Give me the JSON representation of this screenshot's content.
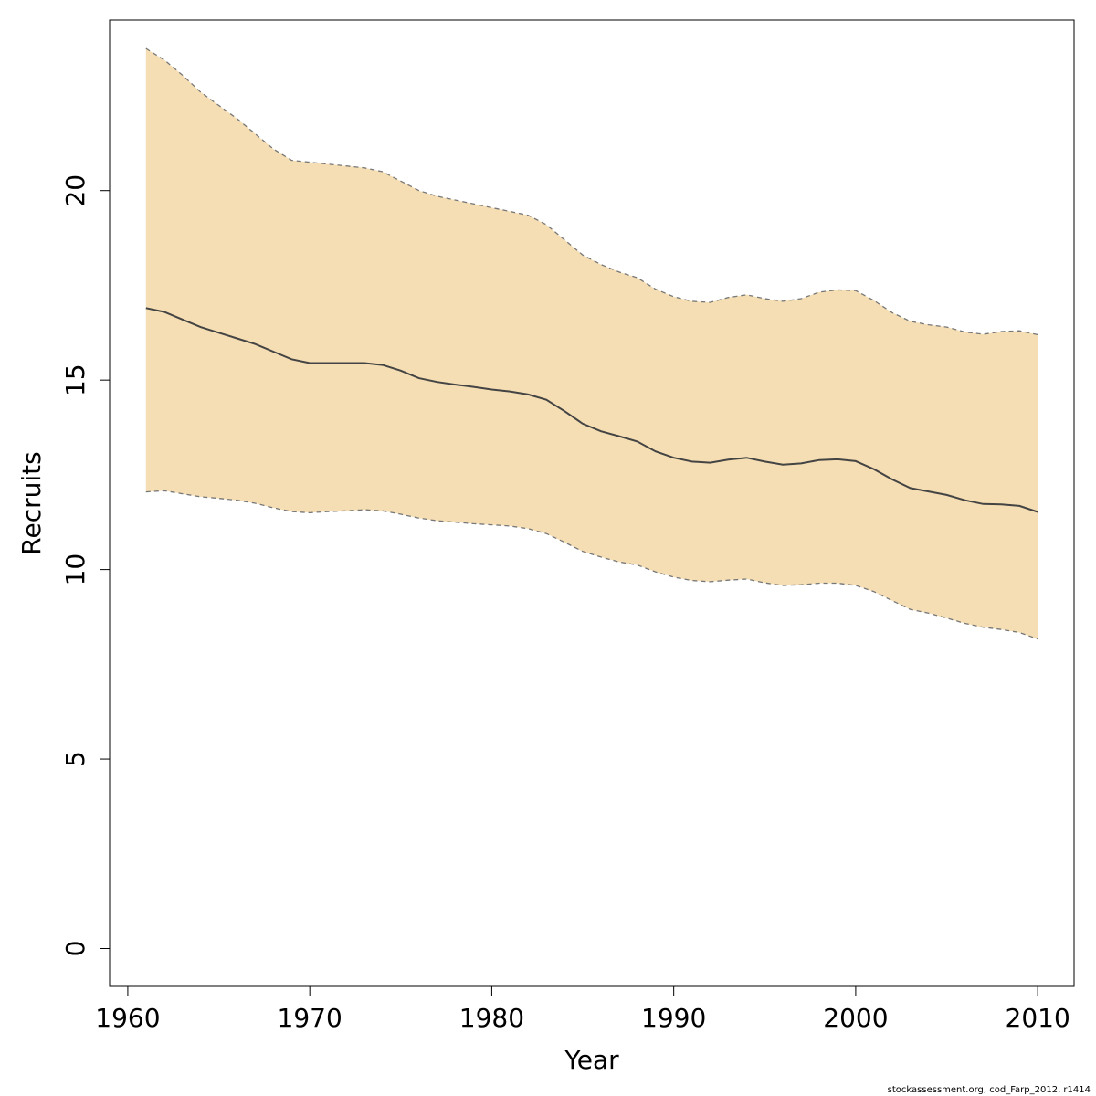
{
  "chart_data": {
    "type": "area",
    "title": "",
    "xlabel": "Year",
    "ylabel": "Recruits",
    "xlim": [
      1959,
      2012
    ],
    "ylim": [
      -1,
      24.5
    ],
    "xticks": [
      1960,
      1970,
      1980,
      1990,
      2000,
      2010
    ],
    "yticks": [
      0,
      5,
      10,
      15,
      20
    ],
    "grid": false,
    "legend": "none",
    "x": [
      1961,
      1962,
      1963,
      1964,
      1965,
      1966,
      1967,
      1968,
      1969,
      1970,
      1971,
      1972,
      1973,
      1974,
      1975,
      1976,
      1977,
      1978,
      1979,
      1980,
      1981,
      1982,
      1983,
      1984,
      1985,
      1986,
      1987,
      1988,
      1989,
      1990,
      1991,
      1992,
      1993,
      1994,
      1995,
      1996,
      1997,
      1998,
      1999,
      2000,
      2001,
      2002,
      2003,
      2004,
      2005,
      2006,
      2007,
      2008,
      2009,
      2010
    ],
    "series": [
      {
        "role": "estimate",
        "values": [
          16.9,
          16.8,
          16.6,
          16.4,
          16.25,
          16.1,
          15.95,
          15.75,
          15.55,
          15.45,
          15.45,
          15.45,
          15.45,
          15.4,
          15.25,
          15.05,
          14.95,
          14.88,
          14.82,
          14.75,
          14.7,
          14.62,
          14.48,
          14.18,
          13.85,
          13.65,
          13.52,
          13.38,
          13.12,
          12.95,
          12.85,
          12.82,
          12.9,
          12.95,
          12.85,
          12.77,
          12.8,
          12.89,
          12.91,
          12.86,
          12.65,
          12.38,
          12.15,
          12.06,
          11.97,
          11.83,
          11.73,
          11.72,
          11.68,
          11.52
        ]
      },
      {
        "role": "upper",
        "values": [
          23.75,
          23.45,
          23.05,
          22.6,
          22.25,
          21.9,
          21.5,
          21.1,
          20.8,
          20.75,
          20.7,
          20.65,
          20.6,
          20.5,
          20.25,
          20.0,
          19.85,
          19.75,
          19.65,
          19.55,
          19.45,
          19.35,
          19.1,
          18.7,
          18.3,
          18.05,
          17.85,
          17.7,
          17.4,
          17.2,
          17.08,
          17.05,
          17.18,
          17.25,
          17.15,
          17.08,
          17.15,
          17.32,
          17.38,
          17.36,
          17.1,
          16.78,
          16.55,
          16.46,
          16.4,
          16.27,
          16.21,
          16.28,
          16.3,
          16.2
        ]
      },
      {
        "role": "lower",
        "values": [
          12.05,
          12.08,
          12.0,
          11.92,
          11.88,
          11.83,
          11.75,
          11.63,
          11.53,
          11.5,
          11.53,
          11.55,
          11.58,
          11.55,
          11.46,
          11.36,
          11.29,
          11.25,
          11.21,
          11.18,
          11.15,
          11.08,
          10.95,
          10.72,
          10.48,
          10.33,
          10.2,
          10.12,
          9.94,
          9.8,
          9.71,
          9.68,
          9.72,
          9.75,
          9.65,
          9.58,
          9.6,
          9.64,
          9.64,
          9.58,
          9.42,
          9.18,
          8.95,
          8.85,
          8.72,
          8.58,
          8.48,
          8.42,
          8.34,
          8.17
        ]
      }
    ],
    "colors": {
      "band_fill": "#f5deb3",
      "band_border": "#777777",
      "line": "#444444",
      "axis": "#000000"
    }
  },
  "credit": "stockassessment.org, cod_Farp_2012, r1414"
}
